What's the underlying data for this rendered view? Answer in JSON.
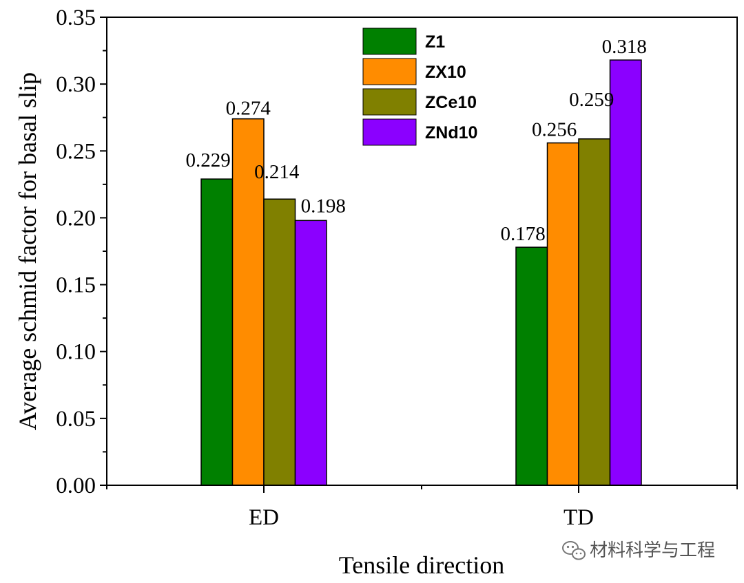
{
  "chart_data": {
    "type": "bar",
    "title": "",
    "xlabel": "Tensile direction",
    "ylabel": "Average schmid factor for basal slip",
    "categories": [
      "ED",
      "TD"
    ],
    "ylim": [
      0,
      0.35
    ],
    "yticks": [
      "0.00",
      "0.05",
      "0.10",
      "0.15",
      "0.20",
      "0.25",
      "0.30",
      "0.35"
    ],
    "grid": false,
    "legend_position": "top-center",
    "series": [
      {
        "name": "Z1",
        "color": "#008000",
        "values": [
          0.229,
          0.178
        ],
        "labels": [
          "0.229",
          "0.178"
        ]
      },
      {
        "name": "ZX10",
        "color": "#ff8c00",
        "values": [
          0.274,
          0.256
        ],
        "labels": [
          "0.274",
          "0.256"
        ]
      },
      {
        "name": "ZCe10",
        "color": "#808000",
        "values": [
          0.214,
          0.259
        ],
        "labels": [
          "0.214",
          "0.259"
        ]
      },
      {
        "name": "ZNd10",
        "color": "#8b00ff",
        "values": [
          0.198,
          0.318
        ],
        "labels": [
          "0.198",
          "0.318"
        ]
      }
    ]
  },
  "watermark": {
    "icon": "wechat-icon",
    "text": "材料科学与工程"
  }
}
